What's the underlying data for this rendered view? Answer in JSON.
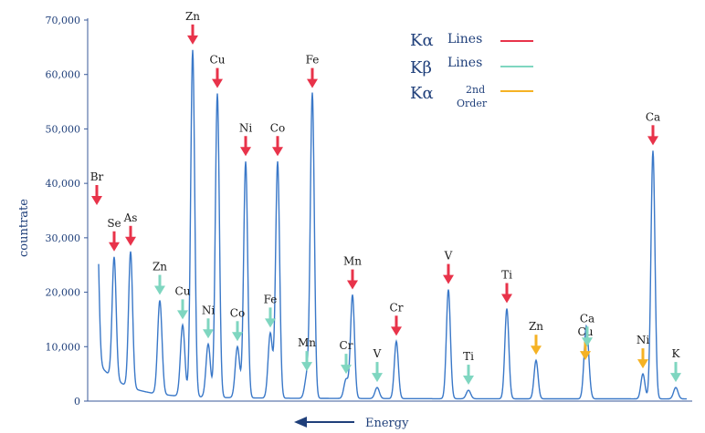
{
  "chart_data": {
    "type": "line",
    "ylabel": "countrate",
    "xlabel": "Energy",
    "ylim": [
      0,
      70000
    ],
    "yticks": [
      "0",
      "10,000",
      "20,000",
      "30,000",
      "40,000",
      "50,000",
      "60,000",
      "70,000"
    ],
    "x_direction": "decreasing to the right",
    "grid": false,
    "legend": {
      "position": "top-right",
      "entries": [
        {
          "symbol": "Kα",
          "text": "Lines",
          "color": "#e8334a"
        },
        {
          "symbol": "Kβ",
          "text": "Lines",
          "color": "#7fd6c0"
        },
        {
          "symbol": "Kα",
          "text": "2nd Order",
          "color": "#f5b224"
        }
      ]
    },
    "peaks": [
      {
        "label": "Br",
        "series": "Ka",
        "value": 35000
      },
      {
        "label": "Se",
        "series": "Ka",
        "value": 26500
      },
      {
        "label": "As",
        "series": "Ka",
        "value": 27500
      },
      {
        "label": "Zn",
        "series": "Kb",
        "value": 18500
      },
      {
        "label": "Cu",
        "series": "Kb",
        "value": 14000
      },
      {
        "label": "Zn",
        "series": "Ka",
        "value": 64500
      },
      {
        "label": "Ni",
        "series": "Kb",
        "value": 10500
      },
      {
        "label": "Cu",
        "series": "Ka",
        "value": 56500
      },
      {
        "label": "Co",
        "series": "Kb",
        "value": 10000
      },
      {
        "label": "Ni",
        "series": "Ka",
        "value": 44000
      },
      {
        "label": "Fe",
        "series": "Kb",
        "value": 12500
      },
      {
        "label": "Co",
        "series": "Ka",
        "value": 44000
      },
      {
        "label": "Mn",
        "series": "Kb",
        "value": 4500
      },
      {
        "label": "Fe",
        "series": "Ka",
        "value": 56500
      },
      {
        "label": "Cr",
        "series": "Kb",
        "value": 4000
      },
      {
        "label": "Mn",
        "series": "Ka",
        "value": 19500
      },
      {
        "label": "V",
        "series": "Kb",
        "value": 2500
      },
      {
        "label": "Cr",
        "series": "Ka",
        "value": 11000
      },
      {
        "label": "V",
        "series": "Ka",
        "value": 20500
      },
      {
        "label": "Ti",
        "series": "Kb",
        "value": 2000
      },
      {
        "label": "Ti",
        "series": "Ka",
        "value": 17000
      },
      {
        "label": "Zn",
        "series": "Ka2",
        "value": 7500
      },
      {
        "label": "Cu",
        "series": "Ka2",
        "value": 6500
      },
      {
        "label": "Ca",
        "series": "Kb",
        "value": 9000
      },
      {
        "label": "Ni",
        "series": "Ka2",
        "value": 5000
      },
      {
        "label": "Ca",
        "series": "Ka",
        "value": 46000
      },
      {
        "label": "K",
        "series": "Kb",
        "value": 2500
      }
    ]
  }
}
